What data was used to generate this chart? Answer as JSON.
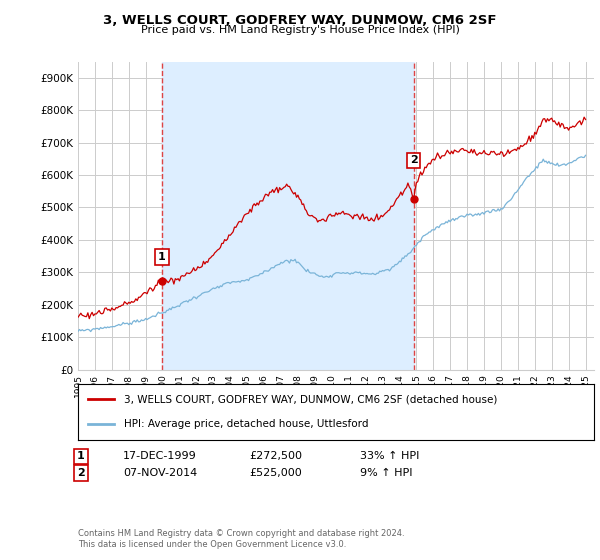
{
  "title": "3, WELLS COURT, GODFREY WAY, DUNMOW, CM6 2SF",
  "subtitle": "Price paid vs. HM Land Registry's House Price Index (HPI)",
  "ylabel_ticks": [
    "£0",
    "£100K",
    "£200K",
    "£300K",
    "£400K",
    "£500K",
    "£600K",
    "£700K",
    "£800K",
    "£900K"
  ],
  "ytick_vals": [
    0,
    100000,
    200000,
    300000,
    400000,
    500000,
    600000,
    700000,
    800000,
    900000
  ],
  "ylim": [
    0,
    950000
  ],
  "xlim_start": 1995.0,
  "xlim_end": 2025.5,
  "xtick_years": [
    1995,
    1996,
    1997,
    1998,
    1999,
    2000,
    2001,
    2002,
    2003,
    2004,
    2005,
    2006,
    2007,
    2008,
    2009,
    2010,
    2011,
    2012,
    2013,
    2014,
    2015,
    2016,
    2017,
    2018,
    2019,
    2020,
    2021,
    2022,
    2023,
    2024,
    2025
  ],
  "sale1_x": 1999.96,
  "sale1_y": 272500,
  "sale1_label": "1",
  "sale2_x": 2014.85,
  "sale2_y": 525000,
  "sale2_label": "2",
  "vline1_x": 1999.96,
  "vline2_x": 2014.85,
  "legend_line1": "3, WELLS COURT, GODFREY WAY, DUNMOW, CM6 2SF (detached house)",
  "legend_line2": "HPI: Average price, detached house, Uttlesford",
  "ann1_date": "17-DEC-1999",
  "ann1_price": "£272,500",
  "ann1_hpi": "33% ↑ HPI",
  "ann2_date": "07-NOV-2014",
  "ann2_price": "£525,000",
  "ann2_hpi": "9% ↑ HPI",
  "footnote": "Contains HM Land Registry data © Crown copyright and database right 2024.\nThis data is licensed under the Open Government Licence v3.0.",
  "hpi_color": "#7ab4d8",
  "price_color": "#cc0000",
  "bg_color": "#ffffff",
  "grid_color": "#cccccc",
  "vline_color": "#dd4444",
  "shade_color": "#ddeeff",
  "hpi_anchors_x": [
    1995.0,
    1996.0,
    1997.0,
    1998.0,
    1999.0,
    2000.0,
    2001.0,
    2002.0,
    2003.0,
    2004.0,
    2005.0,
    2006.0,
    2007.0,
    2007.8,
    2008.5,
    2009.5,
    2010.5,
    2011.5,
    2012.5,
    2013.5,
    2014.5,
    2015.5,
    2016.5,
    2017.5,
    2018.5,
    2019.5,
    2020.0,
    2020.5,
    2021.5,
    2022.5,
    2023.0,
    2023.5,
    2024.0,
    2024.5,
    2025.0
  ],
  "hpi_anchors_y": [
    118000,
    125000,
    133000,
    143000,
    155000,
    175000,
    200000,
    225000,
    248000,
    268000,
    275000,
    300000,
    330000,
    340000,
    305000,
    285000,
    300000,
    298000,
    295000,
    310000,
    355000,
    415000,
    448000,
    468000,
    478000,
    490000,
    495000,
    520000,
    590000,
    645000,
    635000,
    628000,
    635000,
    650000,
    660000
  ],
  "price_anchors_x": [
    1995.0,
    1995.5,
    1996.0,
    1996.5,
    1997.0,
    1997.5,
    1998.0,
    1998.5,
    1999.0,
    1999.5,
    1999.96,
    2000.3,
    2001.0,
    2001.5,
    2002.0,
    2002.5,
    2003.0,
    2003.5,
    2004.0,
    2004.5,
    2005.0,
    2005.5,
    2006.0,
    2006.5,
    2007.0,
    2007.5,
    2008.0,
    2008.5,
    2009.0,
    2009.5,
    2010.0,
    2010.5,
    2011.0,
    2011.5,
    2012.0,
    2012.5,
    2013.0,
    2013.5,
    2014.0,
    2014.5,
    2014.85,
    2015.0,
    2015.5,
    2016.0,
    2016.5,
    2017.0,
    2017.5,
    2018.0,
    2018.5,
    2019.0,
    2019.5,
    2020.0,
    2020.5,
    2021.0,
    2021.5,
    2022.0,
    2022.5,
    2023.0,
    2023.5,
    2024.0,
    2024.5,
    2025.0
  ],
  "price_anchors_y": [
    165000,
    168000,
    172000,
    178000,
    185000,
    195000,
    205000,
    220000,
    235000,
    255000,
    272500,
    275000,
    280000,
    295000,
    310000,
    330000,
    355000,
    385000,
    415000,
    450000,
    480000,
    510000,
    530000,
    545000,
    560000,
    565000,
    530000,
    490000,
    465000,
    460000,
    475000,
    480000,
    480000,
    475000,
    465000,
    465000,
    475000,
    500000,
    535000,
    575000,
    525000,
    570000,
    620000,
    645000,
    660000,
    670000,
    675000,
    675000,
    670000,
    665000,
    665000,
    665000,
    670000,
    680000,
    700000,
    730000,
    770000,
    770000,
    755000,
    745000,
    760000,
    770000
  ]
}
